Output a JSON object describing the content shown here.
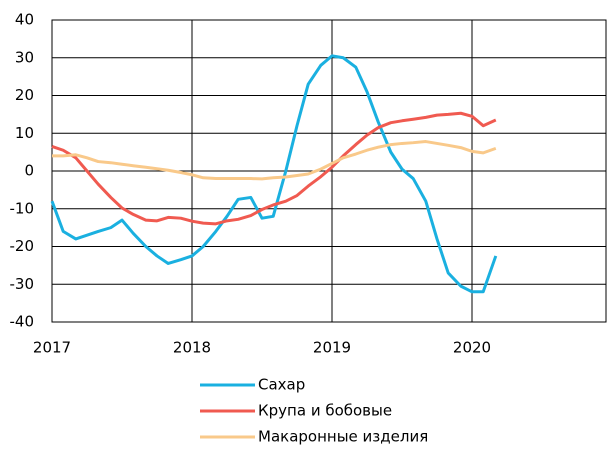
{
  "chart_data": {
    "type": "line",
    "x": [
      2017,
      2017.08,
      2017.17,
      2017.25,
      2017.33,
      2017.42,
      2017.5,
      2017.58,
      2017.67,
      2017.75,
      2017.83,
      2017.92,
      2018,
      2018.08,
      2018.17,
      2018.25,
      2018.33,
      2018.42,
      2018.5,
      2018.58,
      2018.67,
      2018.75,
      2018.83,
      2018.92,
      2019,
      2019.08,
      2019.17,
      2019.25,
      2019.33,
      2019.42,
      2019.5,
      2019.58,
      2019.67,
      2019.75,
      2019.83,
      2019.92,
      2020,
      2020.08,
      2020.17
    ],
    "series": [
      {
        "name": "Сахар",
        "color": "#1ab0e0",
        "values": [
          -8,
          -16,
          -18,
          -17,
          -16,
          -15,
          -13,
          -16.5,
          -20,
          -22.5,
          -24.5,
          -23.5,
          -22.5,
          -20,
          -16,
          -12,
          -7.5,
          -7,
          -12.5,
          -12,
          0,
          12,
          23,
          28,
          30.5,
          30,
          27.5,
          21,
          13,
          5,
          0.5,
          -2,
          -8,
          -18,
          -27,
          -30.5,
          -32,
          -32,
          -22.5
        ]
      },
      {
        "name": "Крупа и бобовые",
        "color": "#f05a50",
        "values": [
          6.5,
          5.5,
          3.5,
          0,
          -3.5,
          -7,
          -9.8,
          -11.5,
          -13,
          -13.2,
          -12.3,
          -12.5,
          -13.3,
          -13.8,
          -14,
          -13.2,
          -12.8,
          -11.8,
          -10.2,
          -9,
          -8,
          -6.5,
          -4,
          -1.5,
          1,
          4,
          7,
          9.5,
          11.5,
          12.8,
          13.3,
          13.7,
          14.2,
          14.8,
          15,
          15.3,
          14.5,
          12,
          13.5
        ]
      },
      {
        "name": "Макаронные изделия",
        "color": "#f9c98a",
        "values": [
          4,
          4,
          4.3,
          3.5,
          2.5,
          2.2,
          1.8,
          1.4,
          1,
          0.6,
          0.2,
          -0.4,
          -1,
          -1.8,
          -2,
          -2,
          -2,
          -2,
          -2.1,
          -1.8,
          -1.6,
          -1.2,
          -0.8,
          0.5,
          2,
          3.5,
          4.5,
          5.5,
          6.3,
          7,
          7.3,
          7.5,
          7.8,
          7.3,
          6.8,
          6.2,
          5.2,
          4.8,
          6
        ]
      }
    ],
    "xlim": [
      2017,
      2021
    ],
    "xticks": [
      2017,
      2018,
      2019,
      2020
    ],
    "ylim": [
      -40,
      40
    ],
    "yticks": [
      -40,
      -30,
      -20,
      -10,
      0,
      10,
      20,
      30,
      40
    ],
    "grid": true
  }
}
